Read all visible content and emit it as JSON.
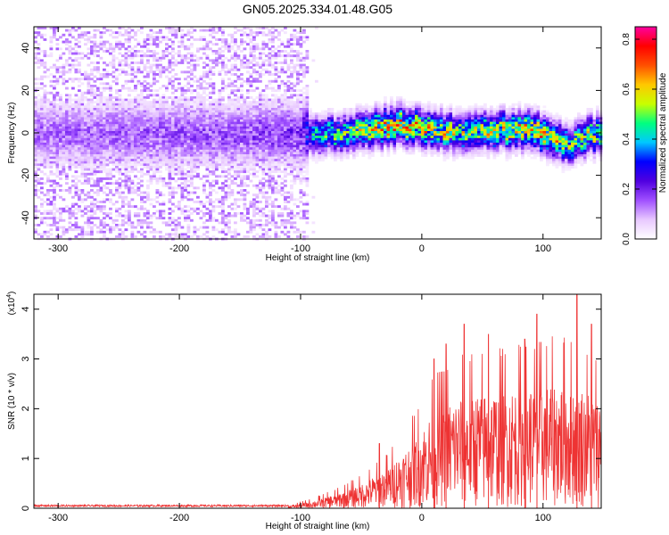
{
  "title": "GN05.2025.334.01.48.G05",
  "chart_data": [
    {
      "type": "heatmap",
      "xlabel": "Height of straight line (km)",
      "ylabel": "Frequency (Hz)",
      "xlim": [
        -320,
        148
      ],
      "ylim": [
        -50,
        50
      ],
      "xticks": [
        -300,
        -200,
        -100,
        0,
        100
      ],
      "yticks": [
        -40,
        -20,
        0,
        20,
        40
      ],
      "colorbar": {
        "label": "Normalized spectral amplitude",
        "range": [
          0,
          0.85
        ],
        "ticks": [
          0.0,
          0.2,
          0.4,
          0.6,
          0.8
        ],
        "tick_labels": [
          "0.0",
          "0.2",
          "0.4",
          "0.6",
          "0.8"
        ],
        "colormap": [
          "#ffffff",
          "#e8c8ff",
          "#a050ff",
          "#5000e0",
          "#0000ff",
          "#00c8ff",
          "#00ff80",
          "#c8ff00",
          "#ffc800",
          "#ff5000",
          "#ff0000",
          "#ff00a0"
        ]
      },
      "signal_track": [
        {
          "x": -320,
          "freq": 0,
          "amp": 0.15
        },
        {
          "x": -250,
          "freq": 0,
          "amp": 0.16
        },
        {
          "x": -150,
          "freq": 0,
          "amp": 0.17
        },
        {
          "x": -100,
          "freq": 0,
          "amp": 0.2
        },
        {
          "x": -90,
          "freq": 0,
          "amp": 0.45
        },
        {
          "x": -60,
          "freq": 0,
          "amp": 0.5
        },
        {
          "x": -40,
          "freq": 3,
          "amp": 0.6
        },
        {
          "x": -20,
          "freq": 4,
          "amp": 0.65
        },
        {
          "x": 0,
          "freq": 3,
          "amp": 0.6
        },
        {
          "x": 20,
          "freq": 1,
          "amp": 0.55
        },
        {
          "x": 50,
          "freq": 1,
          "amp": 0.55
        },
        {
          "x": 80,
          "freq": 2,
          "amp": 0.6
        },
        {
          "x": 100,
          "freq": 0,
          "amp": 0.65
        },
        {
          "x": 120,
          "freq": -6,
          "amp": 0.5
        },
        {
          "x": 135,
          "freq": -1,
          "amp": 0.55
        },
        {
          "x": 148,
          "freq": 0,
          "amp": 0.5
        }
      ]
    },
    {
      "type": "line",
      "xlabel": "Height of straight line (km)",
      "ylabel": "SNR (10 * v/v)",
      "y_multiplier": "(x10",
      "y_multiplier_exp": "4",
      "xlim": [
        -320,
        148
      ],
      "ylim": [
        0,
        4.3
      ],
      "xticks": [
        -300,
        -200,
        -100,
        0,
        100
      ],
      "yticks": [
        0,
        1,
        2,
        3,
        4
      ],
      "series_color": "#ee3333",
      "envelope": [
        {
          "x": -320,
          "y": 0.05
        },
        {
          "x": -110,
          "y": 0.05
        },
        {
          "x": -90,
          "y": 0.15
        },
        {
          "x": -70,
          "y": 0.3
        },
        {
          "x": -50,
          "y": 0.5
        },
        {
          "x": -30,
          "y": 0.8
        },
        {
          "x": -10,
          "y": 1.3
        },
        {
          "x": 10,
          "y": 2.0
        },
        {
          "x": 30,
          "y": 2.3
        },
        {
          "x": 60,
          "y": 2.4
        },
        {
          "x": 90,
          "y": 2.5
        },
        {
          "x": 120,
          "y": 2.6
        },
        {
          "x": 148,
          "y": 2.3
        }
      ],
      "peaks": [
        {
          "x": -35,
          "y": 1.3
        },
        {
          "x": 10,
          "y": 3.0
        },
        {
          "x": 20,
          "y": 3.3
        },
        {
          "x": 35,
          "y": 3.7
        },
        {
          "x": 55,
          "y": 3.5
        },
        {
          "x": 85,
          "y": 3.4
        },
        {
          "x": 95,
          "y": 3.9
        },
        {
          "x": 128,
          "y": 4.3
        },
        {
          "x": 140,
          "y": 3.7
        }
      ]
    }
  ]
}
